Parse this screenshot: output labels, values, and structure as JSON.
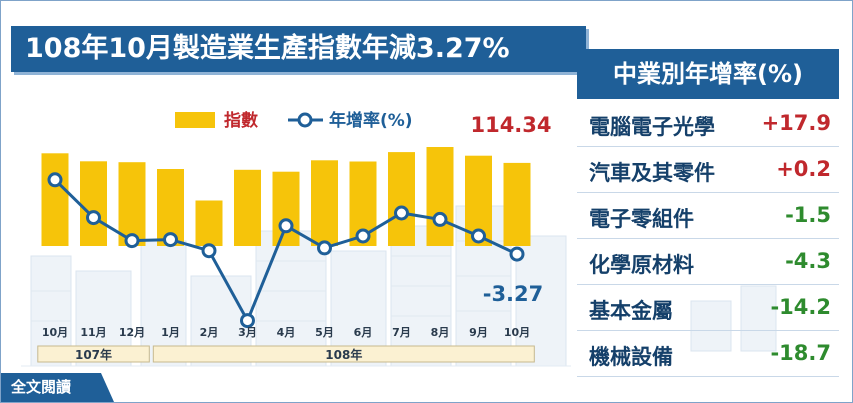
{
  "title": "108年10月製造業生產指數年減3.27%",
  "legend": {
    "index_label": "指數",
    "growth_label": "年增率(%)"
  },
  "chart_data": {
    "type": "bar+line",
    "categories": [
      "10月",
      "11月",
      "12月",
      "1月",
      "2月",
      "3月",
      "4月",
      "5月",
      "6月",
      "7月",
      "8月",
      "9月",
      "10月"
    ],
    "year_groups": [
      {
        "label": "107年",
        "span": 3
      },
      {
        "label": "108年",
        "span": 10
      }
    ],
    "series": [
      {
        "name": "指數",
        "type": "bar",
        "values": [
          118.3,
          115.0,
          114.6,
          111.8,
          98.8,
          111.5,
          110.7,
          115.4,
          114.9,
          118.8,
          120.9,
          117.3,
          114.34
        ]
      },
      {
        "name": "年增率(%)",
        "type": "line",
        "values": [
          4.8,
          0.7,
          -1.8,
          -1.7,
          -2.9,
          -10.5,
          -0.2,
          -2.6,
          -1.3,
          1.2,
          0.5,
          -1.3,
          -3.27
        ]
      }
    ],
    "labels": {
      "last_index": "114.34",
      "last_growth": "-3.27"
    },
    "colors": {
      "bar": "#f6c40a",
      "line": "#1f5f98",
      "index_label": "#c0282d",
      "growth_label": "#1f5f98"
    }
  },
  "industries": {
    "title": "中業別年增率(%)",
    "items": [
      {
        "name": "電腦電子光學",
        "value": "+17.9",
        "color": "#c0282d"
      },
      {
        "name": "汽車及其零件",
        "value": "+0.2",
        "color": "#c0282d"
      },
      {
        "name": "電子零組件",
        "value": "-1.5",
        "color": "#2e8b2e"
      },
      {
        "name": "化學原材料",
        "value": "-4.3",
        "color": "#2e8b2e"
      },
      {
        "name": "基本金屬",
        "value": "-14.2",
        "color": "#2e8b2e"
      },
      {
        "name": "機械設備",
        "value": "-18.7",
        "color": "#2e8b2e"
      }
    ]
  },
  "full_text_button": "全文閱讀"
}
